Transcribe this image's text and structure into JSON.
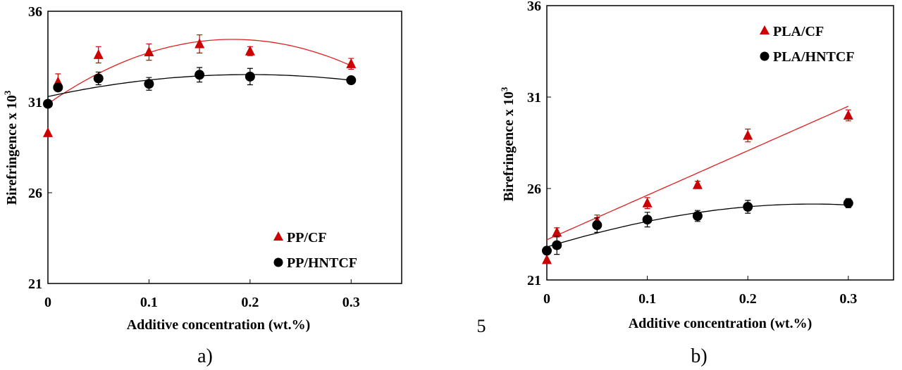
{
  "page_number": "5",
  "chart_data": [
    {
      "type": "scatter",
      "panel_label": "a)",
      "xlabel": "Additive concentration (wt.%)",
      "ylabel": "Birefringence x 10",
      "ylabel_sup": "3",
      "xlim": [
        0,
        0.35
      ],
      "ylim": [
        21,
        36
      ],
      "xticks": [
        "0",
        "0.1",
        "0.2",
        "0.3"
      ],
      "yticks": [
        "21",
        "26",
        "31",
        "36"
      ],
      "grid": false,
      "legend_position": "bottom-right",
      "series": [
        {
          "name": "PP/CF",
          "marker": "triangle",
          "color": "#cc0000",
          "x": [
            0,
            0.01,
            0.05,
            0.1,
            0.15,
            0.2,
            0.3
          ],
          "y": [
            29.3,
            32.1,
            33.6,
            33.75,
            34.2,
            33.8,
            33.1
          ],
          "err": [
            0,
            0.45,
            0.45,
            0.45,
            0.5,
            0.25,
            0.3
          ],
          "fit": {
            "type": "polynomial-2",
            "x": [
              0,
              0.18,
              0.3
            ],
            "y": [
              30.9,
              34.45,
              33.0
            ]
          }
        },
        {
          "name": "PP/HNTCF",
          "marker": "circle",
          "color": "#000000",
          "x": [
            0,
            0.01,
            0.05,
            0.1,
            0.15,
            0.2,
            0.3
          ],
          "y": [
            30.9,
            31.8,
            32.3,
            32.0,
            32.5,
            32.4,
            32.2
          ],
          "err": [
            0,
            0.2,
            0.35,
            0.35,
            0.4,
            0.45,
            0.15
          ],
          "fit": {
            "type": "polynomial-2",
            "x": [
              0,
              0.18,
              0.3
            ],
            "y": [
              31.3,
              32.5,
              32.2
            ]
          }
        }
      ]
    },
    {
      "type": "scatter",
      "panel_label": "b)",
      "xlabel": "Additive concentration (wt.%)",
      "ylabel": "Birefringence x 10",
      "ylabel_sup": "3",
      "xlim": [
        0,
        0.345
      ],
      "ylim": [
        21,
        36
      ],
      "xticks": [
        "0",
        "0.1",
        "0.2",
        "0.3"
      ],
      "yticks": [
        "21",
        "26",
        "31",
        "36"
      ],
      "grid": false,
      "legend_position": "top-right",
      "series": [
        {
          "name": "PLA/CF",
          "marker": "triangle",
          "color": "#cc0000",
          "x": [
            0,
            0.01,
            0.05,
            0.1,
            0.15,
            0.2,
            0.3
          ],
          "y": [
            22.1,
            23.6,
            24.2,
            25.2,
            26.2,
            28.9,
            30.0
          ],
          "err": [
            0,
            0.25,
            0.35,
            0.3,
            0.2,
            0.35,
            0.3
          ],
          "fit": {
            "type": "linear",
            "x": [
              0,
              0.3
            ],
            "y": [
              23.2,
              30.5
            ]
          }
        },
        {
          "name": "PLA/HNTCF",
          "marker": "circle",
          "color": "#000000",
          "x": [
            0,
            0.01,
            0.05,
            0.1,
            0.15,
            0.2,
            0.3
          ],
          "y": [
            22.6,
            22.9,
            24.0,
            24.3,
            24.5,
            25.0,
            25.2
          ],
          "err": [
            0,
            0.5,
            0.4,
            0.4,
            0.3,
            0.35,
            0.25
          ],
          "fit": {
            "type": "polynomial-2",
            "x": [
              0,
              0.1,
              0.2,
              0.3
            ],
            "y": [
              22.8,
              24.2,
              25.0,
              25.1
            ]
          }
        }
      ]
    }
  ]
}
